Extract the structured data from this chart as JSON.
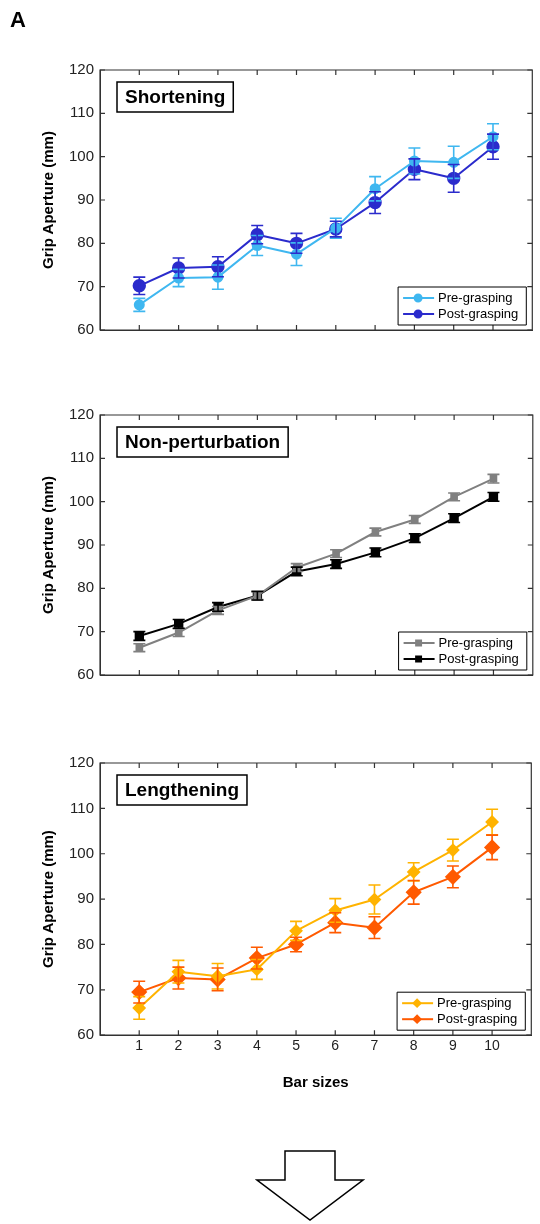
{
  "chart_data": [
    {
      "type": "line",
      "title": "Shortening",
      "annotations": [
        "A"
      ],
      "ylabel": "Grip Aperture (mm)",
      "x": [
        1,
        2,
        3,
        4,
        5,
        6,
        7,
        8,
        9,
        10
      ],
      "xlim": [
        0,
        11
      ],
      "xticks": [
        1,
        2,
        3,
        4,
        5,
        6,
        7,
        8,
        9,
        10
      ],
      "ylim": [
        60,
        120
      ],
      "yticks": [
        60,
        70,
        80,
        90,
        100,
        110,
        120
      ],
      "tick_labels": "y",
      "grid": false,
      "legend": "bottom right",
      "marker": "circle",
      "series": [
        {
          "name": "Pre-grasping",
          "color": "#3fb7f0",
          "values": [
            65.8,
            72,
            72.2,
            79.5,
            77.5,
            83.5,
            92.6,
            99,
            98.7,
            104.6
          ],
          "errors": [
            1.5,
            2,
            2.8,
            2.3,
            2.6,
            2.3,
            2.8,
            3,
            3.7,
            3
          ]
        },
        {
          "name": "Post-grasping",
          "color": "#2b2bcc",
          "values": [
            70.2,
            74.3,
            74.6,
            82,
            80,
            83.3,
            89.4,
            97.1,
            95,
            102.3
          ],
          "errors": [
            2,
            2.3,
            2.3,
            2.1,
            2.3,
            1.8,
            2.5,
            2.4,
            3.2,
            2.9
          ]
        }
      ]
    },
    {
      "type": "line",
      "title": "Non-perturbation",
      "ylabel": "Grip Aperture (mm)",
      "x": [
        1,
        2,
        3,
        4,
        5,
        6,
        7,
        8,
        9,
        10
      ],
      "xlim": [
        0,
        11
      ],
      "xticks": [
        1,
        2,
        3,
        4,
        5,
        6,
        7,
        8,
        9,
        10
      ],
      "ylim": [
        60,
        120
      ],
      "yticks": [
        60,
        70,
        80,
        90,
        100,
        110,
        120
      ],
      "tick_labels": "y",
      "grid": false,
      "legend": "bottom right",
      "marker": "square",
      "series": [
        {
          "name": "Pre-grasping",
          "color": "#808080",
          "values": [
            66.3,
            69.8,
            74.9,
            78.3,
            84.8,
            88,
            93,
            95.9,
            101.1,
            105.3
          ],
          "errors": [
            0.9,
            0.9,
            0.9,
            0.9,
            0.9,
            0.9,
            0.9,
            0.9,
            0.9,
            1
          ]
        },
        {
          "name": "Post-grasping",
          "color": "#000000",
          "values": [
            69,
            71.8,
            75.7,
            78.3,
            83.9,
            85.6,
            88.3,
            91.6,
            96.2,
            101.1
          ],
          "errors": [
            1,
            1,
            1,
            1,
            1,
            1,
            1,
            1,
            1,
            1
          ]
        }
      ]
    },
    {
      "type": "line",
      "title": "Lengthening",
      "ylabel": "Grip Aperture (mm)",
      "xlabel": "Bar sizes",
      "x": [
        1,
        2,
        3,
        4,
        5,
        6,
        7,
        8,
        9,
        10
      ],
      "xlim": [
        0,
        11
      ],
      "xticks": [
        1,
        2,
        3,
        4,
        5,
        6,
        7,
        8,
        9,
        10
      ],
      "ylim": [
        60,
        120
      ],
      "yticks": [
        60,
        70,
        80,
        90,
        100,
        110,
        120
      ],
      "grid": false,
      "legend": "bottom right",
      "marker": "diamond",
      "series": [
        {
          "name": "Pre-grasping",
          "color": "#ffb300",
          "values": [
            66,
            74,
            73,
            74.5,
            83,
            87.5,
            89.9,
            96,
            100.8,
            107
          ],
          "errors": [
            2.5,
            2.5,
            2.8,
            2.2,
            2.1,
            2.6,
            3.2,
            2,
            2.4,
            2.8
          ]
        },
        {
          "name": "Post-grasping",
          "color": "#ff5a00",
          "values": [
            69.5,
            72.6,
            72.3,
            77,
            80,
            84.8,
            83.7,
            91.5,
            94.9,
            101.4
          ],
          "errors": [
            2.4,
            2.4,
            2.5,
            2.4,
            1.6,
            2.2,
            2.4,
            2.6,
            2.4,
            2.7
          ]
        }
      ]
    }
  ]
}
